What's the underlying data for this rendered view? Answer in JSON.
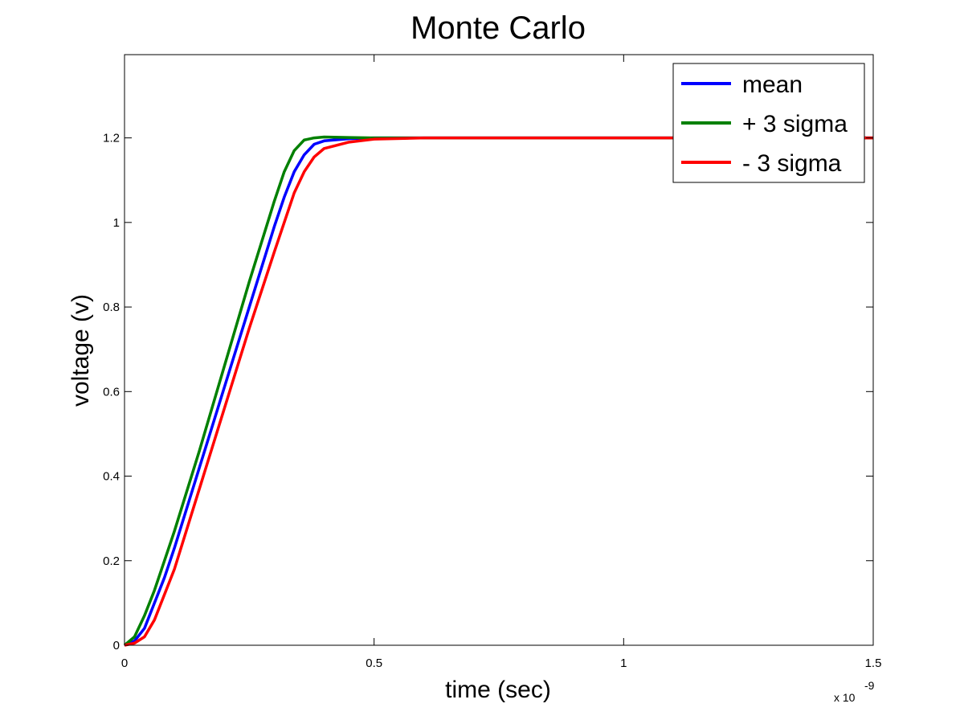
{
  "chart_data": {
    "type": "line",
    "title": "Monte Carlo",
    "xlabel": "time (sec)",
    "ylabel": "voltage (v)",
    "x_exponent_base": "x 10",
    "x_exponent_power": "-9",
    "xlim": [
      0,
      1.5
    ],
    "ylim": [
      0,
      1.3969
    ],
    "x_ticks": [
      0,
      0.5,
      1,
      1.5
    ],
    "x_tick_labels": [
      "0",
      "0.5",
      "1",
      "1.5"
    ],
    "y_ticks": [
      0,
      0.2,
      0.4,
      0.6,
      0.8,
      1,
      1.2
    ],
    "y_tick_labels": [
      "0",
      "0.2",
      "0.4",
      "0.6",
      "0.8",
      "1",
      "1.2"
    ],
    "grid": false,
    "legend_position": "top-right",
    "series": [
      {
        "name": "mean",
        "color": "#0000ff",
        "x": [
          0,
          0.02,
          0.04,
          0.06,
          0.08,
          0.1,
          0.15,
          0.2,
          0.25,
          0.3,
          0.32,
          0.34,
          0.36,
          0.38,
          0.4,
          0.45,
          0.5,
          0.6,
          0.8,
          1.0,
          1.5
        ],
        "y": [
          0,
          0.01,
          0.04,
          0.1,
          0.16,
          0.23,
          0.42,
          0.61,
          0.8,
          0.99,
          1.06,
          1.12,
          1.16,
          1.185,
          1.193,
          1.198,
          1.2,
          1.2,
          1.2,
          1.2,
          1.2
        ]
      },
      {
        "name": "+ 3 sigma",
        "color": "#008000",
        "x": [
          0,
          0.02,
          0.04,
          0.06,
          0.08,
          0.1,
          0.15,
          0.2,
          0.25,
          0.3,
          0.32,
          0.34,
          0.36,
          0.38,
          0.4,
          0.45,
          0.5,
          0.6,
          0.8,
          1.0,
          1.5
        ],
        "y": [
          0,
          0.02,
          0.07,
          0.13,
          0.2,
          0.27,
          0.46,
          0.66,
          0.86,
          1.05,
          1.12,
          1.17,
          1.195,
          1.2,
          1.202,
          1.201,
          1.2,
          1.2,
          1.2,
          1.2,
          1.2
        ]
      },
      {
        "name": "- 3 sigma",
        "color": "#ff0000",
        "x": [
          0,
          0.02,
          0.04,
          0.06,
          0.08,
          0.1,
          0.15,
          0.2,
          0.25,
          0.3,
          0.32,
          0.34,
          0.36,
          0.38,
          0.4,
          0.45,
          0.5,
          0.6,
          0.8,
          1.0,
          1.5
        ],
        "y": [
          0,
          0.005,
          0.02,
          0.06,
          0.12,
          0.18,
          0.37,
          0.56,
          0.75,
          0.93,
          1.0,
          1.07,
          1.12,
          1.155,
          1.175,
          1.19,
          1.197,
          1.2,
          1.2,
          1.2,
          1.2
        ]
      }
    ]
  }
}
